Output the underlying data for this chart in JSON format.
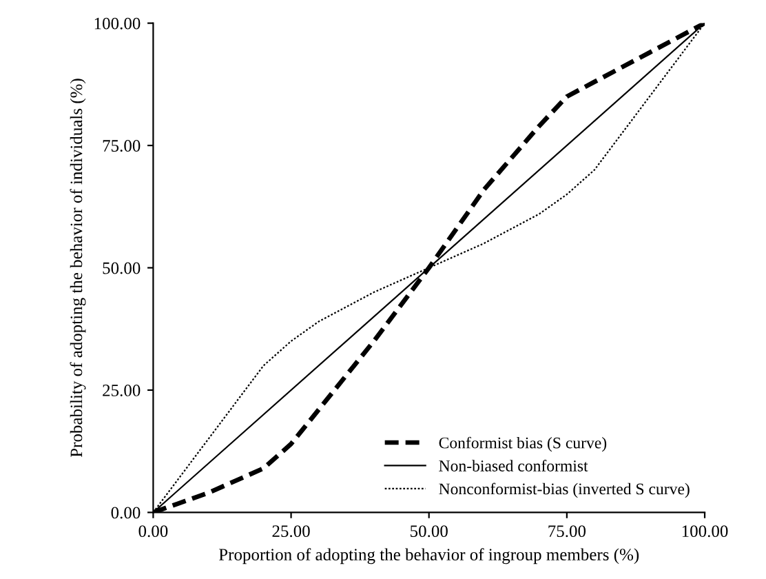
{
  "chart_data": {
    "type": "line",
    "xlabel": "Proportion of adopting the behavior of ingroup members (%)",
    "ylabel": "Probability of adopting the behavior of individuals (%)",
    "xlim": [
      0,
      100
    ],
    "ylim": [
      0,
      100
    ],
    "xticks": [
      {
        "value": 0,
        "label": "0.00"
      },
      {
        "value": 25,
        "label": "25.00"
      },
      {
        "value": 50,
        "label": "50.00"
      },
      {
        "value": 75,
        "label": "75.00"
      },
      {
        "value": 100,
        "label": "100.00"
      }
    ],
    "yticks": [
      {
        "value": 0,
        "label": "0.00"
      },
      {
        "value": 25,
        "label": "25.00"
      },
      {
        "value": 50,
        "label": "50.00"
      },
      {
        "value": 75,
        "label": "75.00"
      },
      {
        "value": 100,
        "label": "100.00"
      }
    ],
    "grid": false,
    "legend": "bottom right",
    "marker": "none",
    "series": [
      {
        "name": "Conformist bias (S curve)",
        "color": "#000000",
        "line_style": "dashed",
        "x": [
          0,
          10,
          20,
          25,
          30,
          40,
          50,
          60,
          70,
          75,
          80,
          90,
          100
        ],
        "values": [
          0,
          4,
          9,
          14,
          21,
          35,
          50,
          66,
          79,
          85,
          88,
          94,
          100
        ]
      },
      {
        "name": "Non-biased conformist",
        "color": "#000000",
        "line_style": "solid",
        "x": [
          0,
          100
        ],
        "values": [
          0,
          100
        ]
      },
      {
        "name": "Nonconformist-bias (inverted S curve)",
        "color": "#000000",
        "line_style": "dotted",
        "x": [
          0,
          10,
          20,
          25,
          30,
          40,
          50,
          60,
          70,
          75,
          80,
          90,
          100
        ],
        "values": [
          0,
          15,
          30,
          35,
          39,
          45,
          50,
          55,
          61,
          65,
          70,
          85,
          100
        ]
      }
    ]
  }
}
